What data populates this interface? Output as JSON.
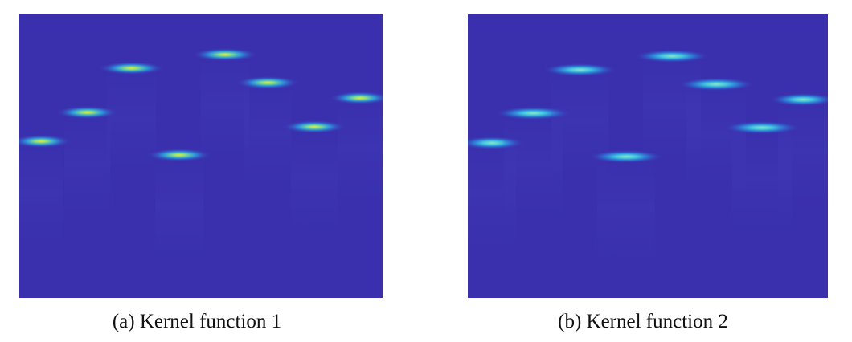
{
  "figures": [
    {
      "caption": "(a) Kernel function 1"
    },
    {
      "caption": "(b) Kernel function 2"
    }
  ]
}
